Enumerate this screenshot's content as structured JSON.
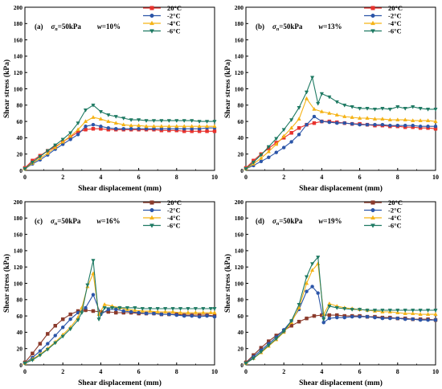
{
  "figure": {
    "axis_common": {
      "xlabel": "Shear displacement (mm)",
      "ylabel": "Shear stress (kPa)",
      "xlim": [
        0,
        10
      ],
      "ylim": [
        0,
        200
      ],
      "xticks": [
        "0",
        "2",
        "4",
        "6",
        "8",
        "10"
      ],
      "yticks": [
        "0",
        "20",
        "40",
        "60",
        "80",
        "100",
        "120",
        "140",
        "160",
        "180",
        "200"
      ]
    },
    "series_styles": [
      {
        "name": "20°C",
        "color": "#e8322d",
        "marker": "square"
      },
      {
        "name": "-2°C",
        "color": "#2b55a8",
        "marker": "circle"
      },
      {
        "name": "-4°C",
        "color": "#f5b316",
        "marker": "triangle-up"
      },
      {
        "name": "-6°C",
        "color": "#1f7a63",
        "marker": "triangle-down"
      }
    ]
  },
  "chart_data": [
    {
      "type": "line",
      "panel_label": "(a)",
      "sigma_label": "σ",
      "sigma_sub": "n",
      "sigma_value": "=50kPa",
      "w_label": "w",
      "w_value": "=10%",
      "xlabel": "Shear displacement (mm)",
      "ylabel": "Shear stress (kPa)",
      "xlim": [
        0,
        10
      ],
      "ylim": [
        0,
        200
      ],
      "legend_position": "top-right",
      "series": [
        {
          "name": "20°C",
          "color": "#e8322d",
          "marker": "square",
          "x": [
            0,
            0.4,
            0.8,
            1.2,
            1.6,
            2.0,
            2.4,
            2.8,
            3.2,
            3.6,
            4.0,
            4.4,
            4.8,
            5.2,
            5.6,
            6.0,
            6.4,
            6.8,
            7.2,
            7.6,
            8.0,
            8.4,
            8.8,
            9.2,
            9.6,
            10.0
          ],
          "y": [
            3,
            12,
            18,
            24,
            29,
            35,
            41,
            47,
            50,
            51,
            51,
            50,
            50,
            50,
            50,
            50,
            50,
            50,
            49,
            49,
            49,
            48,
            48,
            48,
            48,
            48
          ]
        },
        {
          "name": "-2°C",
          "color": "#2b55a8",
          "marker": "circle",
          "x": [
            0,
            0.4,
            0.8,
            1.2,
            1.6,
            2.0,
            2.4,
            2.8,
            3.2,
            3.6,
            4.0,
            4.4,
            4.8,
            5.2,
            5.6,
            6.0,
            6.4,
            6.8,
            7.2,
            7.6,
            8.0,
            8.4,
            8.8,
            9.2,
            9.6,
            10.0
          ],
          "y": [
            2,
            8,
            13,
            19,
            26,
            32,
            38,
            44,
            54,
            56,
            54,
            52,
            51,
            51,
            51,
            51,
            51,
            51,
            51,
            51,
            51,
            51,
            51,
            51,
            52,
            52
          ]
        },
        {
          "name": "-4°C",
          "color": "#f5b316",
          "marker": "triangle-up",
          "x": [
            0,
            0.4,
            0.8,
            1.2,
            1.6,
            2.0,
            2.4,
            2.8,
            3.2,
            3.6,
            4.0,
            4.4,
            4.8,
            5.2,
            5.6,
            6.0,
            6.4,
            6.8,
            7.2,
            7.6,
            8.0,
            8.4,
            8.8,
            9.2,
            9.6,
            10.0
          ],
          "y": [
            2,
            9,
            15,
            21,
            28,
            35,
            42,
            50,
            60,
            65,
            63,
            60,
            58,
            56,
            55,
            55,
            54,
            54,
            54,
            54,
            54,
            54,
            54,
            54,
            54,
            54
          ]
        },
        {
          "name": "-6°C",
          "color": "#1f7a63",
          "marker": "triangle-down",
          "x": [
            0,
            0.4,
            0.8,
            1.2,
            1.6,
            2.0,
            2.4,
            2.8,
            3.2,
            3.6,
            4.0,
            4.4,
            4.8,
            5.2,
            5.6,
            6.0,
            6.4,
            6.8,
            7.2,
            7.6,
            8.0,
            8.4,
            8.8,
            9.2,
            9.6,
            10.0
          ],
          "y": [
            2,
            10,
            17,
            24,
            31,
            38,
            46,
            58,
            74,
            80,
            72,
            68,
            66,
            64,
            62,
            62,
            61,
            61,
            61,
            61,
            61,
            61,
            61,
            60,
            60,
            60
          ]
        }
      ]
    },
    {
      "type": "line",
      "panel_label": "(b)",
      "sigma_label": "σ",
      "sigma_sub": "n",
      "sigma_value": "=50kPa",
      "w_label": "w",
      "w_value": "=13%",
      "xlabel": "Shear displacement (mm)",
      "ylabel": "Shear stress (kPa)",
      "xlim": [
        0,
        10
      ],
      "ylim": [
        0,
        200
      ],
      "legend_position": "top-right",
      "series": [
        {
          "name": "20°C",
          "color": "#e8322d",
          "marker": "square",
          "x": [
            0,
            0.4,
            0.8,
            1.2,
            1.6,
            2.0,
            2.4,
            2.8,
            3.2,
            3.6,
            4.0,
            4.4,
            4.8,
            5.2,
            5.6,
            6.0,
            6.4,
            6.8,
            7.2,
            7.6,
            8.0,
            8.4,
            8.8,
            9.2,
            9.6,
            10.0
          ],
          "y": [
            3,
            12,
            20,
            27,
            34,
            40,
            46,
            52,
            56,
            58,
            60,
            60,
            59,
            58,
            57,
            57,
            56,
            55,
            55,
            54,
            54,
            53,
            53,
            52,
            52,
            51
          ]
        },
        {
          "name": "-2°C",
          "color": "#2b55a8",
          "marker": "circle",
          "x": [
            0,
            0.4,
            0.8,
            1.2,
            1.6,
            2.0,
            2.4,
            2.8,
            3.2,
            3.6,
            4.0,
            4.4,
            4.8,
            5.2,
            5.6,
            6.0,
            6.4,
            6.8,
            7.2,
            7.6,
            8.0,
            8.4,
            8.8,
            9.2,
            9.6,
            10.0
          ],
          "y": [
            2,
            6,
            11,
            16,
            22,
            28,
            35,
            44,
            56,
            66,
            60,
            59,
            58,
            58,
            57,
            56,
            56,
            56,
            56,
            55,
            55,
            55,
            55,
            54,
            54,
            54
          ]
        },
        {
          "name": "-4°C",
          "color": "#f5b316",
          "marker": "triangle-up",
          "x": [
            0,
            0.4,
            0.8,
            1.2,
            1.6,
            2.0,
            2.4,
            2.8,
            3.2,
            3.6,
            4.0,
            4.4,
            4.8,
            5.2,
            5.6,
            6.0,
            6.4,
            6.8,
            7.2,
            7.6,
            8.0,
            8.4,
            8.8,
            9.2,
            9.6,
            10.0
          ],
          "y": [
            2,
            8,
            15,
            23,
            32,
            42,
            52,
            63,
            88,
            75,
            72,
            70,
            68,
            66,
            65,
            64,
            64,
            63,
            63,
            62,
            62,
            62,
            61,
            61,
            61,
            60
          ]
        },
        {
          "name": "-6°C",
          "color": "#1f7a63",
          "marker": "triangle-down",
          "x": [
            0,
            0.4,
            0.8,
            1.2,
            1.6,
            2.0,
            2.4,
            2.8,
            3.2,
            3.5,
            3.8,
            4.0,
            4.4,
            4.8,
            5.2,
            5.6,
            6.0,
            6.4,
            6.8,
            7.2,
            7.6,
            8.0,
            8.4,
            8.8,
            9.2,
            9.6,
            10.0
          ],
          "y": [
            2,
            10,
            19,
            29,
            39,
            50,
            62,
            77,
            96,
            114,
            82,
            94,
            90,
            84,
            80,
            78,
            76,
            76,
            75,
            76,
            75,
            78,
            76,
            78,
            76,
            75,
            75
          ]
        }
      ]
    },
    {
      "type": "line",
      "panel_label": "(c)",
      "sigma_label": "σ",
      "sigma_sub": "n",
      "sigma_value": "=50kPa",
      "w_label": "w",
      "w_value": "=16%",
      "xlabel": "Shear displacement (mm)",
      "ylabel": "Shear stress (kPa)",
      "xlim": [
        0,
        10
      ],
      "ylim": [
        0,
        200
      ],
      "legend_position": "top-right",
      "series": [
        {
          "name": "20°C",
          "color": "#8b3a2b",
          "marker": "square",
          "x": [
            0,
            0.4,
            0.8,
            1.2,
            1.6,
            2.0,
            2.4,
            2.8,
            3.2,
            3.6,
            4.0,
            4.4,
            4.8,
            5.2,
            5.6,
            6.0,
            6.4,
            6.8,
            7.2,
            7.6,
            8.0,
            8.4,
            8.8,
            9.2,
            9.6,
            10.0
          ],
          "y": [
            3,
            14,
            26,
            38,
            48,
            56,
            62,
            66,
            67,
            66,
            65,
            65,
            64,
            64,
            64,
            63,
            63,
            63,
            62,
            62,
            62,
            61,
            61,
            61,
            61,
            60
          ]
        },
        {
          "name": "-2°C",
          "color": "#2b55a8",
          "marker": "circle",
          "x": [
            0,
            0.4,
            0.8,
            1.2,
            1.6,
            2.0,
            2.4,
            2.8,
            3.2,
            3.6,
            4.0,
            4.4,
            4.8,
            5.2,
            5.6,
            6.0,
            6.4,
            6.8,
            7.2,
            7.6,
            8.0,
            8.4,
            8.8,
            9.2,
            9.6,
            10.0
          ],
          "y": [
            2,
            9,
            17,
            26,
            36,
            46,
            56,
            64,
            70,
            86,
            62,
            68,
            68,
            66,
            65,
            64,
            63,
            63,
            62,
            62,
            61,
            60,
            60,
            59,
            60,
            59
          ]
        },
        {
          "name": "-4°C",
          "color": "#f5b316",
          "marker": "triangle-up",
          "x": [
            0,
            0.4,
            0.8,
            1.2,
            1.6,
            2.0,
            2.4,
            2.8,
            3.0,
            3.3,
            3.6,
            3.9,
            4.2,
            4.6,
            5.0,
            5.4,
            5.8,
            6.2,
            6.6,
            7.0,
            7.4,
            7.8,
            8.2,
            8.6,
            9.0,
            9.4,
            9.8,
            10.0
          ],
          "y": [
            2,
            7,
            13,
            20,
            28,
            37,
            46,
            58,
            70,
            96,
            112,
            62,
            74,
            72,
            70,
            68,
            67,
            66,
            66,
            65,
            65,
            65,
            64,
            64,
            64,
            64,
            64,
            64
          ]
        },
        {
          "name": "-6°C",
          "color": "#1f7a63",
          "marker": "triangle-down",
          "x": [
            0,
            0.4,
            0.8,
            1.2,
            1.6,
            2.0,
            2.4,
            2.8,
            3.0,
            3.3,
            3.6,
            3.9,
            4.2,
            4.6,
            5.0,
            5.4,
            5.8,
            6.2,
            6.6,
            7.0,
            7.4,
            7.8,
            8.2,
            8.6,
            9.0,
            9.4,
            9.8,
            10.0
          ],
          "y": [
            2,
            6,
            12,
            19,
            27,
            35,
            44,
            55,
            64,
            98,
            128,
            56,
            70,
            70,
            70,
            70,
            70,
            69,
            69,
            69,
            69,
            69,
            69,
            69,
            69,
            69,
            69,
            69
          ]
        }
      ]
    },
    {
      "type": "line",
      "panel_label": "(d)",
      "sigma_label": "σ",
      "sigma_sub": "n",
      "sigma_value": "=50kPa",
      "w_label": "w",
      "w_value": "=19%",
      "xlabel": "Shear displacement (mm)",
      "ylabel": "Shear stress (kPa)",
      "xlim": [
        0,
        10
      ],
      "ylim": [
        0,
        200
      ],
      "legend_position": "top-right",
      "series": [
        {
          "name": "20°C",
          "color": "#8b3a2b",
          "marker": "square",
          "x": [
            0,
            0.4,
            0.8,
            1.2,
            1.6,
            2.0,
            2.4,
            2.8,
            3.2,
            3.6,
            4.0,
            4.4,
            4.8,
            5.2,
            5.6,
            6.0,
            6.4,
            6.8,
            7.2,
            7.6,
            8.0,
            8.4,
            8.8,
            9.2,
            9.6,
            10.0
          ],
          "y": [
            3,
            12,
            21,
            29,
            36,
            42,
            48,
            53,
            57,
            60,
            61,
            61,
            61,
            60,
            60,
            60,
            59,
            59,
            58,
            58,
            57,
            57,
            56,
            56,
            56,
            55
          ]
        },
        {
          "name": "-2°C",
          "color": "#2b55a8",
          "marker": "circle",
          "x": [
            0,
            0.4,
            0.8,
            1.2,
            1.6,
            2.0,
            2.4,
            2.8,
            3.2,
            3.5,
            3.8,
            4.1,
            4.4,
            4.8,
            5.2,
            5.6,
            6.0,
            6.4,
            6.8,
            7.2,
            7.6,
            8.0,
            8.4,
            8.8,
            9.2,
            9.6,
            10.0
          ],
          "y": [
            2,
            10,
            18,
            26,
            34,
            43,
            54,
            68,
            90,
            96,
            88,
            52,
            57,
            58,
            58,
            59,
            59,
            59,
            58,
            57,
            57,
            57,
            56,
            56,
            55,
            55,
            55
          ]
        },
        {
          "name": "-4°C",
          "color": "#f5b316",
          "marker": "triangle-up",
          "x": [
            0,
            0.4,
            0.8,
            1.2,
            1.6,
            2.0,
            2.4,
            2.8,
            3.2,
            3.5,
            3.8,
            4.1,
            4.4,
            4.8,
            5.2,
            5.6,
            6.0,
            6.4,
            6.8,
            7.2,
            7.6,
            8.0,
            8.4,
            8.8,
            9.2,
            9.6,
            10.0
          ],
          "y": [
            2,
            8,
            15,
            23,
            31,
            40,
            52,
            70,
            100,
            116,
            124,
            62,
            75,
            72,
            70,
            69,
            68,
            67,
            66,
            65,
            65,
            64,
            63,
            63,
            62,
            62,
            62
          ]
        },
        {
          "name": "-6°C",
          "color": "#1f7a63",
          "marker": "triangle-down",
          "x": [
            0,
            0.4,
            0.8,
            1.2,
            1.6,
            2.0,
            2.4,
            2.8,
            3.2,
            3.5,
            3.8,
            4.1,
            4.4,
            4.8,
            5.2,
            5.6,
            6.0,
            6.4,
            6.8,
            7.2,
            7.6,
            8.0,
            8.4,
            8.8,
            9.2,
            9.6,
            10.0
          ],
          "y": [
            2,
            8,
            16,
            24,
            32,
            41,
            54,
            74,
            108,
            124,
            132,
            56,
            72,
            70,
            69,
            68,
            68,
            67,
            67,
            67,
            67,
            67,
            67,
            67,
            67,
            67,
            67
          ]
        }
      ]
    }
  ]
}
